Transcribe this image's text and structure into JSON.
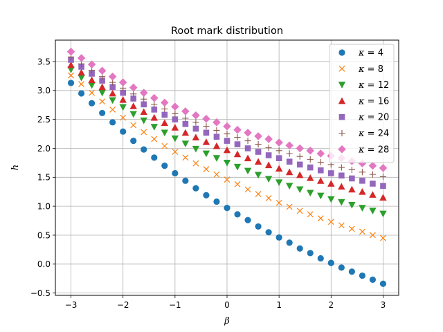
{
  "chart_data": {
    "type": "scatter",
    "title": "Root mark distribution",
    "xlabel": "β",
    "ylabel": "h",
    "xlim": [
      -3.3,
      3.3
    ],
    "ylim": [
      -0.54,
      3.87
    ],
    "xticks": [
      -3,
      -2,
      -1,
      0,
      1,
      2,
      3
    ],
    "xtick_labels": [
      "−3",
      "−2",
      "−1",
      "0",
      "1",
      "2",
      "3"
    ],
    "yticks": [
      -0.5,
      0.0,
      0.5,
      1.0,
      1.5,
      2.0,
      2.5,
      3.0,
      3.5
    ],
    "ytick_labels": [
      "−0.5",
      "0.0",
      "0.5",
      "1.0",
      "1.5",
      "2.0",
      "2.5",
      "3.0",
      "3.5"
    ],
    "grid": true,
    "legend_position": "top-right",
    "x": [
      -3.0,
      -2.8,
      -2.6,
      -2.4,
      -2.2,
      -2.0,
      -1.8,
      -1.6,
      -1.4,
      -1.2,
      -1.0,
      -0.8,
      -0.6,
      -0.4,
      -0.2,
      0.0,
      0.2,
      0.4,
      0.6,
      0.8,
      1.0,
      1.2,
      1.4,
      1.6,
      1.8,
      2.0,
      2.2,
      2.4,
      2.6,
      2.8,
      3.0
    ],
    "series": [
      {
        "name": "κ = 4",
        "legend_main": "κ",
        "legend_rest": " = 4",
        "marker": "circle",
        "color": "#1f77b4",
        "values": [
          3.13,
          2.95,
          2.78,
          2.61,
          2.45,
          2.29,
          2.13,
          1.98,
          1.84,
          1.7,
          1.57,
          1.44,
          1.31,
          1.19,
          1.08,
          0.97,
          0.86,
          0.76,
          0.65,
          0.55,
          0.46,
          0.37,
          0.27,
          0.19,
          0.1,
          0.02,
          -0.06,
          -0.13,
          -0.2,
          -0.27,
          -0.34
        ]
      },
      {
        "name": "κ = 8",
        "legend_main": "κ",
        "legend_rest": " = 8",
        "marker": "x",
        "color": "#ff7f0e",
        "values": [
          3.26,
          3.11,
          2.96,
          2.81,
          2.67,
          2.53,
          2.4,
          2.28,
          2.16,
          2.04,
          1.94,
          1.84,
          1.74,
          1.64,
          1.55,
          1.46,
          1.38,
          1.29,
          1.21,
          1.14,
          1.06,
          0.99,
          0.92,
          0.86,
          0.79,
          0.73,
          0.67,
          0.61,
          0.56,
          0.5,
          0.45
        ]
      },
      {
        "name": "κ = 12",
        "legend_main": "κ",
        "legend_rest": " = 12",
        "marker": "triangle-down",
        "color": "#2ca02c",
        "values": [
          3.36,
          3.22,
          3.09,
          2.96,
          2.83,
          2.71,
          2.59,
          2.48,
          2.37,
          2.27,
          2.17,
          2.08,
          1.99,
          1.91,
          1.83,
          1.75,
          1.68,
          1.61,
          1.54,
          1.47,
          1.41,
          1.35,
          1.29,
          1.23,
          1.18,
          1.12,
          1.07,
          1.02,
          0.97,
          0.92,
          0.87
        ]
      },
      {
        "name": "κ = 16",
        "legend_main": "κ",
        "legend_rest": " = 16",
        "marker": "triangle-up",
        "color": "#d62728",
        "values": [
          3.44,
          3.31,
          3.18,
          3.06,
          2.95,
          2.84,
          2.73,
          2.63,
          2.53,
          2.44,
          2.36,
          2.27,
          2.19,
          2.11,
          2.04,
          1.97,
          1.9,
          1.83,
          1.77,
          1.71,
          1.65,
          1.59,
          1.54,
          1.49,
          1.44,
          1.39,
          1.34,
          1.29,
          1.25,
          1.2,
          1.15
        ]
      },
      {
        "name": "κ = 20",
        "legend_main": "κ",
        "legend_rest": " = 20",
        "marker": "square",
        "color": "#9467bd",
        "values": [
          3.53,
          3.41,
          3.29,
          3.17,
          3.06,
          2.96,
          2.86,
          2.76,
          2.67,
          2.58,
          2.5,
          2.42,
          2.34,
          2.27,
          2.2,
          2.13,
          2.07,
          2.0,
          1.94,
          1.88,
          1.83,
          1.77,
          1.72,
          1.67,
          1.62,
          1.57,
          1.53,
          1.48,
          1.44,
          1.39,
          1.35
        ]
      },
      {
        "name": "κ = 24",
        "legend_main": "κ",
        "legend_rest": " = 24",
        "marker": "plus",
        "color": "#8c564b",
        "values": [
          3.58,
          3.46,
          3.35,
          3.24,
          3.14,
          3.04,
          2.94,
          2.85,
          2.76,
          2.68,
          2.6,
          2.52,
          2.45,
          2.38,
          2.31,
          2.25,
          2.19,
          2.13,
          2.07,
          2.01,
          1.96,
          1.91,
          1.86,
          1.81,
          1.76,
          1.72,
          1.67,
          1.63,
          1.59,
          1.55,
          1.51
        ]
      },
      {
        "name": "κ = 28",
        "legend_main": "κ",
        "legend_rest": " = 28",
        "marker": "diamond",
        "color": "#e377c2",
        "values": [
          3.67,
          3.56,
          3.45,
          3.34,
          3.24,
          3.14,
          3.05,
          2.96,
          2.87,
          2.79,
          2.72,
          2.64,
          2.57,
          2.51,
          2.45,
          2.38,
          2.32,
          2.27,
          2.21,
          2.16,
          2.1,
          2.05,
          2.0,
          1.96,
          1.91,
          1.87,
          1.83,
          1.78,
          1.74,
          1.7,
          1.66
        ]
      }
    ]
  }
}
